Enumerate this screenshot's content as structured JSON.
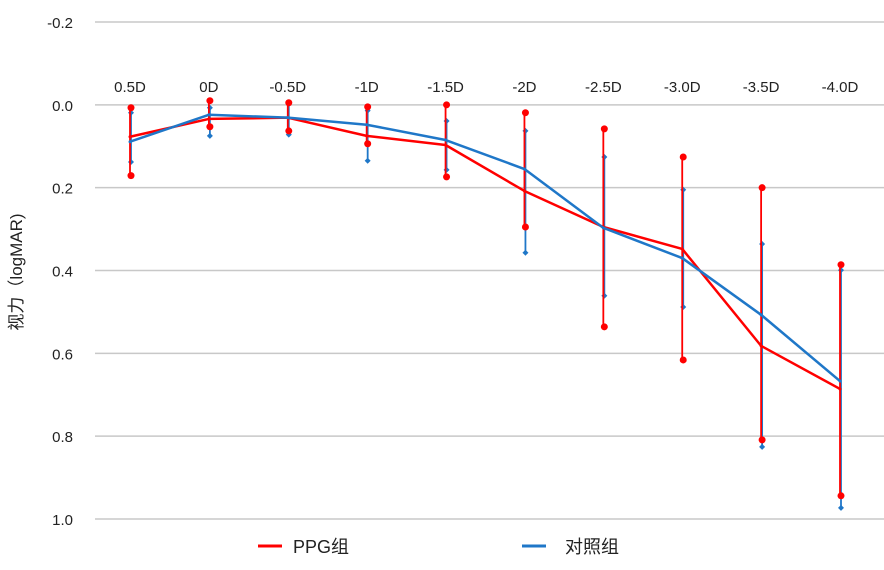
{
  "chart_data": {
    "type": "line",
    "title": "",
    "xlabel": "",
    "ylabel": "视力（logMAR)",
    "ylim": [
      -0.2,
      1.0
    ],
    "y_inverted": true,
    "yticks": [
      -0.2,
      0.0,
      0.2,
      0.4,
      0.6,
      0.8,
      1.0
    ],
    "ytick_labels": [
      "-0.2",
      "0.0",
      "0.2",
      "0.4",
      "0.6",
      "0.8",
      "1.0"
    ],
    "grid": true,
    "legend_position": "bottom",
    "categories": [
      "0.5D",
      "0D",
      "-0.5D",
      "-1D",
      "-1.5D",
      "-2D",
      "-2.5D",
      "-3.0D",
      "-3.5D",
      "-4.0D"
    ],
    "series": [
      {
        "name": "PPG组",
        "color": "#ff0000",
        "values": [
          0.077,
          0.034,
          0.031,
          0.075,
          0.097,
          0.208,
          0.295,
          0.348,
          0.582,
          0.686
        ],
        "err_low": [
          0.007,
          -0.01,
          -0.005,
          0.005,
          0.0,
          0.019,
          0.058,
          0.126,
          0.2,
          0.386
        ],
        "err_high": [
          0.171,
          0.053,
          0.063,
          0.094,
          0.174,
          0.295,
          0.536,
          0.616,
          0.809,
          0.944
        ]
      },
      {
        "name": "对照组",
        "color": "#1f77c8",
        "values": [
          0.089,
          0.024,
          0.031,
          0.048,
          0.085,
          0.155,
          0.297,
          0.37,
          0.507,
          0.667
        ],
        "err_low": [
          0.019,
          0.007,
          -0.002,
          0.014,
          0.039,
          0.063,
          0.126,
          0.205,
          0.336,
          0.399
        ],
        "err_high": [
          0.138,
          0.075,
          0.072,
          0.135,
          0.157,
          0.357,
          0.461,
          0.488,
          0.826,
          0.973
        ]
      }
    ]
  }
}
